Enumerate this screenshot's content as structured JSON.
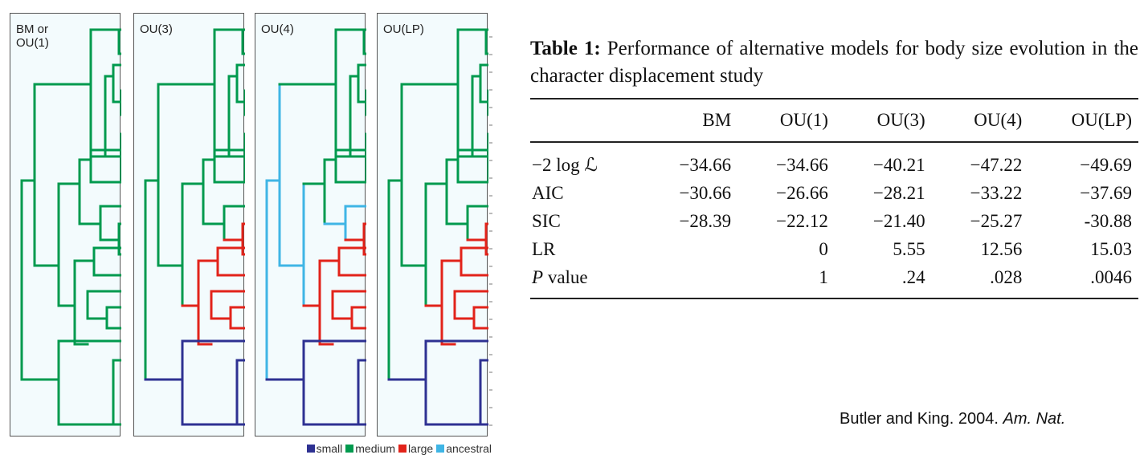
{
  "figure": {
    "panels": [
      {
        "id": "bm",
        "label": "BM or\nOU(1)"
      },
      {
        "id": "ou3",
        "label": "OU(3)"
      },
      {
        "id": "ou4",
        "label": "OU(4)"
      },
      {
        "id": "oulp",
        "label": "OU(LP)"
      }
    ],
    "legend": [
      {
        "label": "small",
        "color": "#2e3192"
      },
      {
        "label": "medium",
        "color": "#009a4e"
      },
      {
        "label": "large",
        "color": "#e2231a"
      },
      {
        "label": "ancestral",
        "color": "#3fb5e5"
      }
    ]
  },
  "table": {
    "caption_bold": "Table 1:",
    "caption_text": "Performance of alternative models for body size evolution in the character displacement study",
    "columns": [
      "",
      "BM",
      "OU(1)",
      "OU(3)",
      "OU(4)",
      "OU(LP)"
    ],
    "rows": [
      {
        "label": "−2 log ℒ",
        "italic_label": false,
        "values": [
          "−34.66",
          "−34.66",
          "−40.21",
          "−47.22",
          "−49.69"
        ]
      },
      {
        "label": "AIC",
        "italic_label": false,
        "values": [
          "−30.66",
          "−26.66",
          "−28.21",
          "−33.22",
          "−37.69"
        ]
      },
      {
        "label": "SIC",
        "italic_label": false,
        "values": [
          "−28.39",
          "−22.12",
          "−21.40",
          "−25.27",
          "-30.88"
        ]
      },
      {
        "label": "LR",
        "italic_label": false,
        "values": [
          "",
          "0",
          "5.55",
          "12.56",
          "15.03"
        ]
      },
      {
        "label": "P value",
        "italic_label": true,
        "values": [
          "",
          "1",
          ".24",
          ".028",
          ".0046"
        ]
      }
    ]
  },
  "citation": {
    "text": "Butler and King. 2004. ",
    "journal": "Am. Nat."
  }
}
